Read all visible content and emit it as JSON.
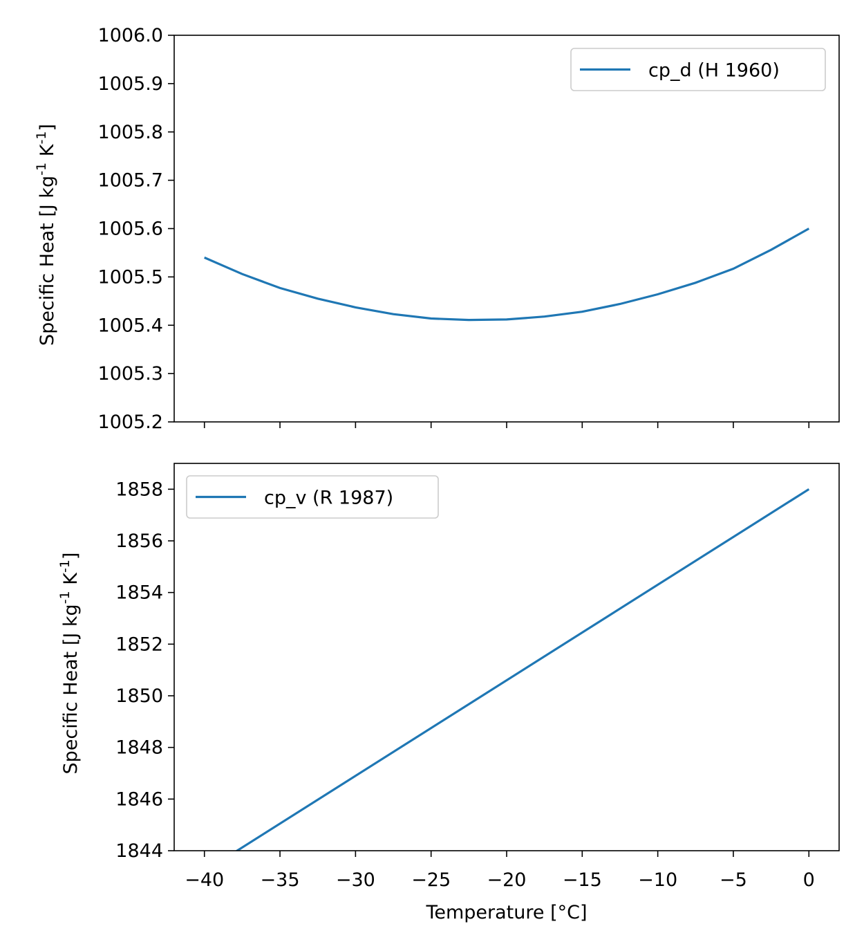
{
  "chart_data": [
    {
      "type": "line",
      "xlabel": "",
      "ylabel": "Specific Heat [J kg$^{-1}$ K$^{-1}$]",
      "ylim": [
        1005.2,
        1006.0
      ],
      "yticks": [
        1005.2,
        1005.3,
        1005.4,
        1005.5,
        1005.6,
        1005.7,
        1005.8,
        1005.9,
        1006.0
      ],
      "ytick_labels": [
        "1005.2",
        "1005.3",
        "1005.4",
        "1005.5",
        "1005.6",
        "1005.7",
        "1005.8",
        "1005.9",
        "1006.0"
      ],
      "xlim": [
        -42,
        2
      ],
      "xticks": [
        -40,
        -35,
        -30,
        -25,
        -20,
        -15,
        -10,
        -5,
        0
      ],
      "show_xtick_labels": false,
      "legend_placement": "top-right",
      "grid": false,
      "series": [
        {
          "name": "cp_d (H 1960)",
          "color": "#1f77b4",
          "x": [
            -40,
            -37.5,
            -35,
            -32.5,
            -30,
            -27.5,
            -25,
            -22.5,
            -20,
            -17.5,
            -15,
            -12.5,
            -10,
            -7.5,
            -5,
            -2.5,
            0
          ],
          "y": [
            1005.54,
            1005.506,
            1005.477,
            1005.455,
            1005.437,
            1005.423,
            1005.414,
            1005.411,
            1005.412,
            1005.418,
            1005.428,
            1005.444,
            1005.464,
            1005.488,
            1005.517,
            1005.556,
            1005.6
          ]
        }
      ]
    },
    {
      "type": "line",
      "xlabel": "Temperature [°C]",
      "ylabel": "Specific Heat [J kg$^{-1}$ K$^{-1}$]",
      "ylim": [
        1844,
        1859
      ],
      "yticks": [
        1844,
        1846,
        1848,
        1850,
        1852,
        1854,
        1856,
        1858
      ],
      "ytick_labels": [
        "1844",
        "1846",
        "1848",
        "1850",
        "1852",
        "1854",
        "1856",
        "1858"
      ],
      "xlim": [
        -42,
        2
      ],
      "xticks": [
        -40,
        -35,
        -30,
        -25,
        -20,
        -15,
        -10,
        -5,
        0
      ],
      "xtick_labels": [
        "−40",
        "−35",
        "−30",
        "−25",
        "−20",
        "−15",
        "−10",
        "−5",
        "0"
      ],
      "show_xtick_labels": true,
      "legend_placement": "top-left",
      "grid": false,
      "series": [
        {
          "name": "cp_v (R 1987)",
          "color": "#1f77b4",
          "x": [
            -40,
            0
          ],
          "y": [
            1843.2,
            1858.0
          ]
        }
      ]
    }
  ]
}
